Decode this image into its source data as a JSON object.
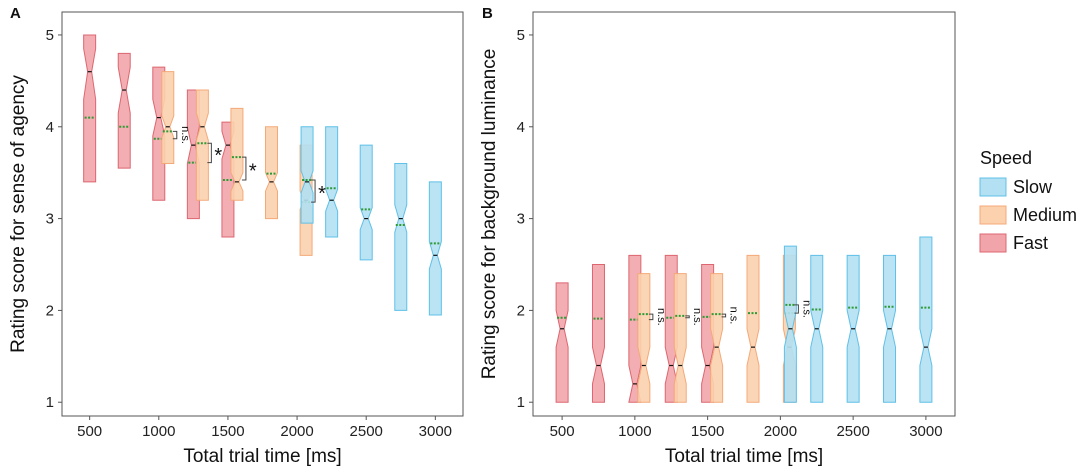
{
  "chart_data": [
    {
      "type": "box",
      "panel": "A",
      "xlabel": "Total trial time [ms]",
      "ylabel": "Rating score for sense of agency",
      "x_ticks": [
        "500",
        "1000",
        "1500",
        "2000",
        "2500",
        "3000"
      ],
      "y_ticks": [
        "1",
        "2",
        "3",
        "4",
        "5"
      ],
      "ylim": [
        0.85,
        5.25
      ],
      "xlim": [
        300,
        3200
      ],
      "series": [
        {
          "name": "Fast",
          "boxes": [
            {
              "x": 500,
              "low": 3.4,
              "high": 5.0,
              "median": 4.6,
              "mean": 4.1,
              "notch": [
                4.3,
                4.85
              ]
            },
            {
              "x": 750,
              "low": 3.55,
              "high": 4.8,
              "median": 4.4,
              "mean": 4.0,
              "notch": [
                4.15,
                4.65
              ]
            },
            {
              "x": 1000,
              "low": 3.2,
              "high": 4.65,
              "median": 4.1,
              "mean": 3.87,
              "notch": [
                3.9,
                4.3
              ]
            },
            {
              "x": 1250,
              "low": 3.0,
              "high": 4.4,
              "median": 3.8,
              "mean": 3.61,
              "notch": [
                3.6,
                4.0
              ]
            },
            {
              "x": 1500,
              "low": 2.8,
              "high": 4.05,
              "median": 3.8,
              "mean": 3.42,
              "notch": [
                3.65,
                3.95
              ]
            }
          ]
        },
        {
          "name": "Medium",
          "boxes": [
            {
              "x": 1000,
              "low": 3.6,
              "high": 4.6,
              "median": 4.0,
              "mean": 3.95,
              "notch": [
                3.88,
                4.12
              ]
            },
            {
              "x": 1250,
              "low": 3.2,
              "high": 4.4,
              "median": 4.0,
              "mean": 3.82,
              "notch": [
                3.85,
                4.15
              ]
            },
            {
              "x": 1500,
              "low": 3.2,
              "high": 4.2,
              "median": 3.4,
              "mean": 3.67,
              "notch": [
                3.3,
                3.5
              ]
            },
            {
              "x": 1750,
              "low": 3.0,
              "high": 4.0,
              "median": 3.4,
              "mean": 3.49,
              "notch": [
                3.3,
                3.5
              ]
            },
            {
              "x": 2000,
              "low": 2.6,
              "high": 3.8,
              "median": 3.2,
              "mean": 3.18,
              "notch": [
                3.1,
                3.3
              ]
            }
          ]
        },
        {
          "name": "Slow",
          "boxes": [
            {
              "x": 2000,
              "low": 2.95,
              "high": 4.0,
              "median": 3.4,
              "mean": 3.42,
              "notch": [
                3.28,
                3.52
              ]
            },
            {
              "x": 2250,
              "low": 2.8,
              "high": 4.0,
              "median": 3.2,
              "mean": 3.33,
              "notch": [
                3.08,
                3.32
              ]
            },
            {
              "x": 2500,
              "low": 2.55,
              "high": 3.8,
              "median": 3.0,
              "mean": 3.1,
              "notch": [
                2.88,
                3.12
              ]
            },
            {
              "x": 2750,
              "low": 2.0,
              "high": 3.6,
              "median": 3.0,
              "mean": 2.93,
              "notch": [
                2.85,
                3.15
              ]
            },
            {
              "x": 3000,
              "low": 1.95,
              "high": 3.4,
              "median": 2.6,
              "mean": 2.73,
              "notch": [
                2.45,
                2.75
              ]
            }
          ]
        }
      ],
      "significance": [
        {
          "label": "n.s.",
          "x": 1000,
          "y1": 3.87,
          "y2": 3.95
        },
        {
          "label": "*",
          "x": 1250,
          "y1": 3.61,
          "y2": 3.82
        },
        {
          "label": "*",
          "x": 1500,
          "y1": 3.42,
          "y2": 3.67
        },
        {
          "label": "*",
          "x": 2000,
          "y1": 3.18,
          "y2": 3.42
        }
      ]
    },
    {
      "type": "box",
      "panel": "B",
      "xlabel": "Total trial time [ms]",
      "ylabel": "Rating score for background luminance",
      "x_ticks": [
        "500",
        "1000",
        "1500",
        "2000",
        "2500",
        "3000"
      ],
      "y_ticks": [
        "1",
        "2",
        "3",
        "4",
        "5"
      ],
      "ylim": [
        0.85,
        5.25
      ],
      "xlim": [
        300,
        3200
      ],
      "series": [
        {
          "name": "Fast",
          "boxes": [
            {
              "x": 500,
              "low": 1.0,
              "high": 2.3,
              "median": 1.8,
              "mean": 1.92,
              "notch": [
                1.6,
                2.0
              ]
            },
            {
              "x": 750,
              "low": 1.0,
              "high": 2.5,
              "median": 1.4,
              "mean": 1.91,
              "notch": [
                1.2,
                1.6
              ]
            },
            {
              "x": 1000,
              "low": 1.0,
              "high": 2.6,
              "median": 1.2,
              "mean": 1.9,
              "notch": [
                1.0,
                1.4
              ]
            },
            {
              "x": 1250,
              "low": 1.0,
              "high": 2.6,
              "median": 1.4,
              "mean": 1.92,
              "notch": [
                1.2,
                1.6
              ]
            },
            {
              "x": 1500,
              "low": 1.0,
              "high": 2.5,
              "median": 1.4,
              "mean": 1.93,
              "notch": [
                1.2,
                1.6
              ]
            }
          ]
        },
        {
          "name": "Medium",
          "boxes": [
            {
              "x": 1000,
              "low": 1.0,
              "high": 2.4,
              "median": 1.4,
              "mean": 1.96,
              "notch": [
                1.2,
                1.6
              ]
            },
            {
              "x": 1250,
              "low": 1.0,
              "high": 2.4,
              "median": 1.4,
              "mean": 1.94,
              "notch": [
                1.2,
                1.6
              ]
            },
            {
              "x": 1500,
              "low": 1.0,
              "high": 2.4,
              "median": 1.6,
              "mean": 1.96,
              "notch": [
                1.4,
                1.8
              ]
            },
            {
              "x": 1750,
              "low": 1.0,
              "high": 2.6,
              "median": 1.6,
              "mean": 1.97,
              "notch": [
                1.4,
                1.8
              ]
            },
            {
              "x": 2000,
              "low": 1.0,
              "high": 2.6,
              "median": 1.6,
              "mean": 1.97,
              "notch": [
                1.4,
                1.8
              ]
            }
          ]
        },
        {
          "name": "Slow",
          "boxes": [
            {
              "x": 2000,
              "low": 1.0,
              "high": 2.7,
              "median": 1.8,
              "mean": 2.06,
              "notch": [
                1.6,
                2.0
              ]
            },
            {
              "x": 2250,
              "low": 1.0,
              "high": 2.6,
              "median": 1.8,
              "mean": 2.01,
              "notch": [
                1.6,
                2.0
              ]
            },
            {
              "x": 2500,
              "low": 1.0,
              "high": 2.6,
              "median": 1.8,
              "mean": 2.03,
              "notch": [
                1.6,
                2.0
              ]
            },
            {
              "x": 2750,
              "low": 1.0,
              "high": 2.6,
              "median": 1.8,
              "mean": 2.04,
              "notch": [
                1.6,
                2.0
              ]
            },
            {
              "x": 3000,
              "low": 1.0,
              "high": 2.8,
              "median": 1.6,
              "mean": 2.03,
              "notch": [
                1.4,
                1.8
              ]
            }
          ]
        }
      ],
      "significance": [
        {
          "label": "n.s.",
          "x": 1000,
          "y1": 1.9,
          "y2": 1.96
        },
        {
          "label": "n.s.",
          "x": 1250,
          "y1": 1.92,
          "y2": 1.94
        },
        {
          "label": "n.s.",
          "x": 1500,
          "y1": 1.93,
          "y2": 1.96
        },
        {
          "label": "n.s.",
          "x": 2000,
          "y1": 1.97,
          "y2": 2.06
        }
      ]
    }
  ],
  "legend": {
    "title": "Speed",
    "placement": "right",
    "entries": [
      {
        "name": "Slow",
        "fill": "#b3e0f2",
        "stroke": "#5fc0e8"
      },
      {
        "name": "Medium",
        "fill": "#fbd1ae",
        "stroke": "#f4a978"
      },
      {
        "name": "Fast",
        "fill": "#f1a5aa",
        "stroke": "#dd6670"
      }
    ]
  },
  "colors": {
    "Slow": {
      "fill": "#b3e0f2",
      "stroke": "#5fc0e8"
    },
    "Medium": {
      "fill": "#fbd1ae",
      "stroke": "#f4a978"
    },
    "Fast": {
      "fill": "#f1a5aa",
      "stroke": "#dd6670"
    },
    "median": "#111111",
    "mean": "#2e9a35",
    "frame": "#555555"
  }
}
